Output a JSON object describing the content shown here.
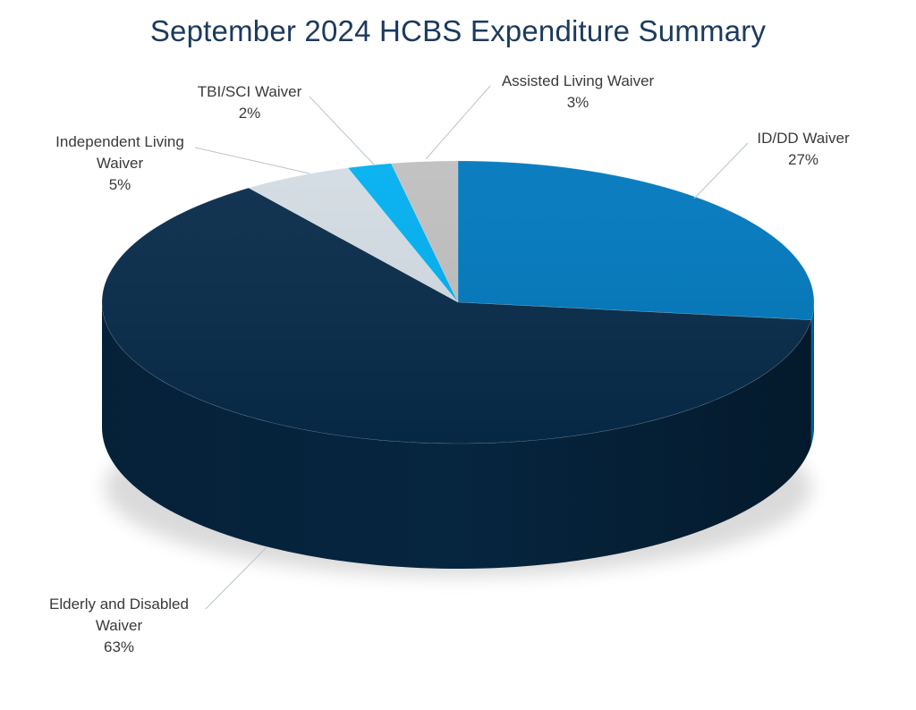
{
  "chart_data": {
    "type": "pie",
    "title": "September 2024 HCBS Expenditure Summary",
    "slices": [
      {
        "name": "ID/DD Waiver",
        "label_lines": [
          "ID/DD Waiver"
        ],
        "value": 27,
        "value_label": "27%",
        "color": "#0078bd"
      },
      {
        "name": "Elderly and Disabled Waiver",
        "label_lines": [
          "Elderly and Disabled",
          "Waiver"
        ],
        "value": 63,
        "value_label": "63%",
        "color": "#072b4a"
      },
      {
        "name": "Independent Living Waiver",
        "label_lines": [
          "Independent Living",
          "Waiver"
        ],
        "value": 5,
        "value_label": "5%",
        "color": "#d3dce3"
      },
      {
        "name": "TBI/SCI Waiver",
        "label_lines": [
          "TBI/SCI Waiver"
        ],
        "value": 2,
        "value_label": "2%",
        "color": "#00b0f0"
      },
      {
        "name": "Assisted Living Waiver",
        "label_lines": [
          "Assisted Living Waiver"
        ],
        "value": 3,
        "value_label": "3%",
        "color": "#bfbfbf"
      }
    ]
  }
}
